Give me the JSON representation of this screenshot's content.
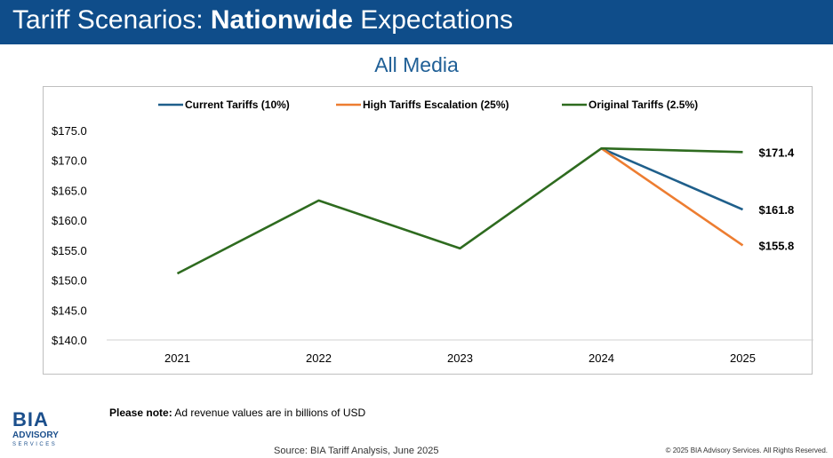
{
  "header": {
    "title_prefix": "Tariff Scenarios: ",
    "title_bold": "Nationwide",
    "title_suffix": " Expectations",
    "background": "#0f4d8a"
  },
  "chart_data": {
    "type": "line",
    "title": "All Media",
    "categories": [
      "2021",
      "2022",
      "2023",
      "2024",
      "2025"
    ],
    "ylim": [
      140,
      175
    ],
    "yticks": [
      "$140.0",
      "$145.0",
      "$150.0",
      "$155.0",
      "$160.0",
      "$165.0",
      "$170.0",
      "$175.0"
    ],
    "ytick_values": [
      140,
      145,
      150,
      155,
      160,
      165,
      170,
      175
    ],
    "grid": false,
    "legend_position": "top",
    "series": [
      {
        "name": "Current Tariffs (10%)",
        "color": "#1f5f8b",
        "values": [
          null,
          null,
          null,
          172.0,
          161.8
        ],
        "label": "$161.8"
      },
      {
        "name": "High Tariffs Escalation (25%)",
        "color": "#ed7d31",
        "values": [
          null,
          null,
          null,
          172.0,
          155.8
        ],
        "label": "$155.8"
      },
      {
        "name": "Original Tariffs (2.5%)",
        "color": "#2e6b1f",
        "values": [
          151.1,
          163.3,
          155.3,
          172.0,
          171.4
        ],
        "label": "$171.4"
      }
    ]
  },
  "footer": {
    "note_bold": "Please note:",
    "note_text": " Ad revenue values are in billions of USD",
    "source": "Source: BIA Tariff Analysis, June 2025",
    "copyright": "© 2025 BIA Advisory Services. All Rights Reserved."
  },
  "logo": {
    "bia": "BIA",
    "advisory": "ADVISORY",
    "services": "SERVICES"
  }
}
